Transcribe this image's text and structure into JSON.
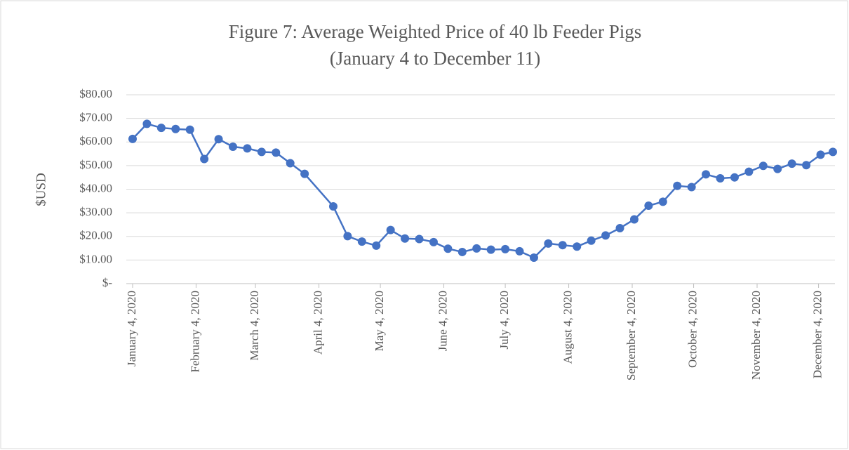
{
  "chart_data": {
    "type": "line",
    "title": "Figure 7: Average Weighted Price of 40 lb Feeder Pigs",
    "subtitle": "(January 4 to December 11)",
    "y_label": "$USD",
    "x": [
      "2020-01-04",
      "2020-01-11",
      "2020-01-18",
      "2020-01-25",
      "2020-02-01",
      "2020-02-08",
      "2020-02-15",
      "2020-02-22",
      "2020-02-29",
      "2020-03-07",
      "2020-03-14",
      "2020-03-21",
      "2020-03-28",
      "2020-04-11",
      "2020-04-18",
      "2020-04-25",
      "2020-05-02",
      "2020-05-09",
      "2020-05-16",
      "2020-05-23",
      "2020-05-30",
      "2020-06-06",
      "2020-06-13",
      "2020-06-20",
      "2020-06-27",
      "2020-07-04",
      "2020-07-11",
      "2020-07-18",
      "2020-07-25",
      "2020-08-01",
      "2020-08-08",
      "2020-08-15",
      "2020-08-22",
      "2020-08-29",
      "2020-09-05",
      "2020-09-12",
      "2020-09-19",
      "2020-09-26",
      "2020-10-03",
      "2020-10-10",
      "2020-10-17",
      "2020-10-24",
      "2020-10-31",
      "2020-11-07",
      "2020-11-14",
      "2020-11-21",
      "2020-11-28",
      "2020-12-05",
      "2020-12-11"
    ],
    "series": [
      {
        "name": "Average Weighted Price",
        "color": "#4472c4",
        "values": [
          61.3,
          67.7,
          66.0,
          65.5,
          65.2,
          52.8,
          61.2,
          58.0,
          57.3,
          55.8,
          55.5,
          51.0,
          46.5,
          32.7,
          20.1,
          17.8,
          16.1,
          22.7,
          19.1,
          18.9,
          17.6,
          14.8,
          13.4,
          14.9,
          14.4,
          14.6,
          13.7,
          11.0,
          17.0,
          16.3,
          15.7,
          18.2,
          20.4,
          23.5,
          27.2,
          33.0,
          34.7,
          41.4,
          40.9,
          46.3,
          44.6,
          45.0,
          47.4,
          49.9,
          48.6,
          50.8,
          50.2,
          54.6,
          55.8
        ]
      }
    ],
    "xlim": [
      "2020-01-04",
      "2020-12-11"
    ],
    "xticks": [
      {
        "value": "2020-01-04",
        "label": "January 4, 2020"
      },
      {
        "value": "2020-02-04",
        "label": "February 4, 2020"
      },
      {
        "value": "2020-03-04",
        "label": "March 4, 2020"
      },
      {
        "value": "2020-04-04",
        "label": "April 4, 2020"
      },
      {
        "value": "2020-05-04",
        "label": "May 4, 2020"
      },
      {
        "value": "2020-06-04",
        "label": "June 4, 2020"
      },
      {
        "value": "2020-07-04",
        "label": "July 4, 2020"
      },
      {
        "value": "2020-08-04",
        "label": "August 4, 2020"
      },
      {
        "value": "2020-09-04",
        "label": "September 4, 2020"
      },
      {
        "value": "2020-10-04",
        "label": "October 4, 2020"
      },
      {
        "value": "2020-11-04",
        "label": "November 4, 2020"
      },
      {
        "value": "2020-12-04",
        "label": "December 4, 2020"
      }
    ],
    "ylim": [
      0,
      80
    ],
    "yticks": [
      {
        "value": 0,
        "label": "$-"
      },
      {
        "value": 10,
        "label": "$10.00"
      },
      {
        "value": 20,
        "label": "$20.00"
      },
      {
        "value": 30,
        "label": "$30.00"
      },
      {
        "value": 40,
        "label": "$40.00"
      },
      {
        "value": 50,
        "label": "$50.00"
      },
      {
        "value": 60,
        "label": "$60.00"
      },
      {
        "value": 70,
        "label": "$70.00"
      },
      {
        "value": 80,
        "label": "$80.00"
      }
    ],
    "grid": true
  }
}
